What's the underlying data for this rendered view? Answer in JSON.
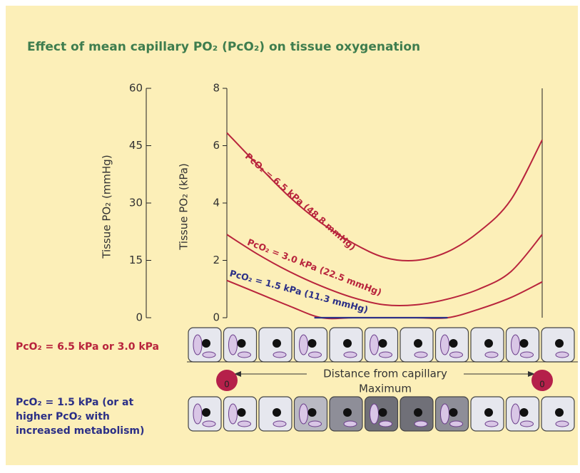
{
  "chart_data": {
    "type": "line",
    "title": "Effect of mean capillary PO₂ (PcO₂) on tissue oxygenation",
    "ylabel": "Tissue PO₂ (kPa)",
    "y2label": "Tissue PO₂ (mmHg)",
    "ylim": [
      0,
      8
    ],
    "yticks": [
      0,
      2,
      4,
      6,
      8
    ],
    "y2lim": [
      0,
      60
    ],
    "y2ticks": [
      0,
      15,
      30,
      45,
      60
    ],
    "categories": [
      null,
      null,
      null,
      null,
      null,
      null,
      null,
      null,
      null,
      null,
      null
    ],
    "series": [
      {
        "name": "PcO₂ = 6.5 kPa (48.8 mmHg)",
        "color": "#b8243c",
        "values": [
          6.45,
          5.3,
          4.2,
          3.3,
          2.6,
          2.1,
          2.0,
          2.3,
          3.0,
          4.1,
          6.2
        ]
      },
      {
        "name": "PcO₂ = 3.0 kPa (22.5 mmHg)",
        "color": "#b8243c",
        "values": [
          2.9,
          2.2,
          1.6,
          1.1,
          0.7,
          0.45,
          0.45,
          0.65,
          1.0,
          1.6,
          2.9
        ]
      },
      {
        "name": "PcO₂ = 1.5 kPa (11.3 mmHg)",
        "color": "#b8243c",
        "zero_color": "#2b2f86",
        "label_color": "#2b2f86",
        "values": [
          1.3,
          0.85,
          0.4,
          0,
          0,
          0,
          0,
          0,
          0.3,
          0.7,
          1.25
        ]
      }
    ],
    "xlabel": "Distance from capillary",
    "xmax_label": "Maximum",
    "capillary_label": "0",
    "row1_label": "PcO₂ = 6.5 kPa or 3.0 kPa",
    "row2_label": [
      "PcO₂ = 1.5 kPa (or at",
      "higher PcO₂ with",
      "increased metabolism)"
    ]
  }
}
